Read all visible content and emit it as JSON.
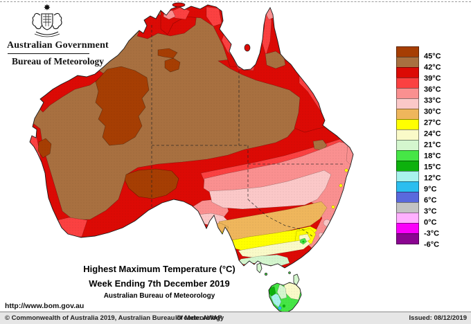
{
  "header": {
    "gov_label": "Australian Government",
    "bureau_label": "Bureau of Meteorology"
  },
  "map": {
    "name": "Highest maximum temperature map of Australia",
    "accent_colors": {
      "land_base_brown": "#A87040",
      "dark_red": "#DC0A05",
      "coast_outline": "#1a1a1a"
    }
  },
  "legend": {
    "unit": "°C",
    "labels": [
      "45°C",
      "42°C",
      "39°C",
      "36°C",
      "33°C",
      "30°C",
      "27°C",
      "24°C",
      "21°C",
      "18°C",
      "15°C",
      "12°C",
      "9°C",
      "6°C",
      "3°C",
      "0°C",
      "-3°C",
      "-6°C"
    ],
    "colors": [
      "#A63E03",
      "#A87040",
      "#DC0A05",
      "#FB4141",
      "#FA9090",
      "#FBC8C8",
      "#EFB65C",
      "#FFFF00",
      "#FAFAC8",
      "#D4F6CE",
      "#46E646",
      "#0DB10D",
      "#A8F2ED",
      "#2BBEEF",
      "#5A69DD",
      "#C3C3C3",
      "#FFB0FF",
      "#FA00FA",
      "#8B0591"
    ]
  },
  "title": {
    "line1": "Highest Maximum Temperature (°C)",
    "line2": "Week Ending 7th December 2019",
    "line3": "Australian Bureau of Meteorology"
  },
  "footer": {
    "url": "http://www.bom.gov.au",
    "copyright": "© Commonwealth of Australia 2019, Australian Bureau of Meteorology",
    "id_code": "ID code: AWAP",
    "issued": "Issued: 08/12/2019"
  }
}
